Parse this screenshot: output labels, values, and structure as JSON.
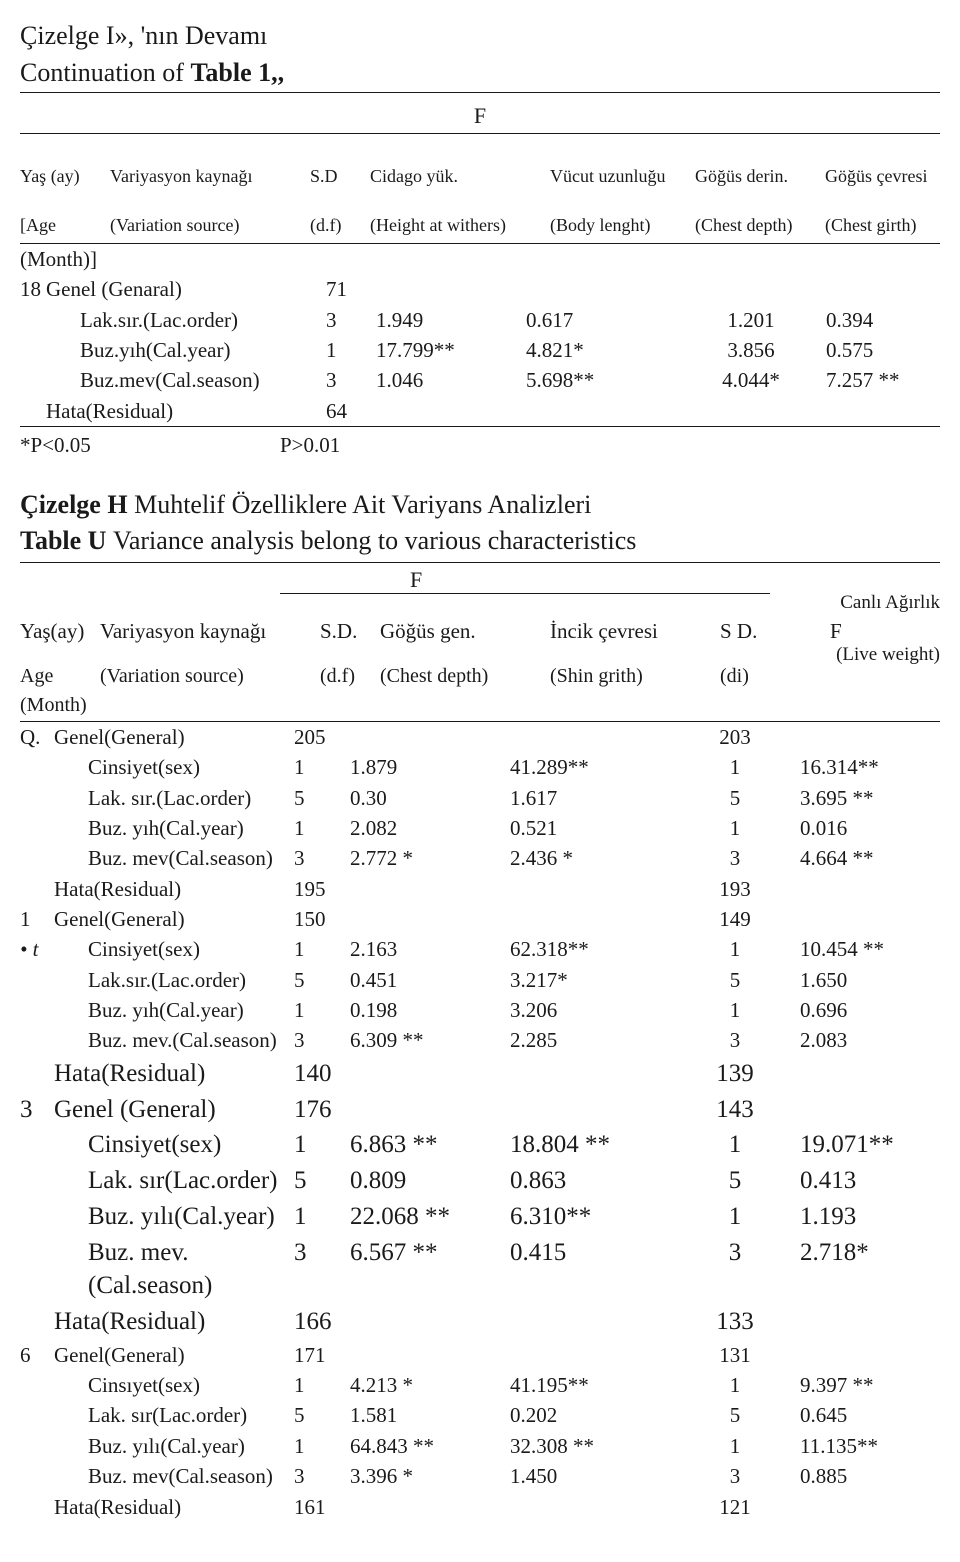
{
  "top": {
    "title_a": "Çizelge I», 'nın Devamı",
    "title_b_prefix": "Continuation of ",
    "title_b_bold": "Table 1,,",
    "F": "F",
    "hdr": {
      "age_tr": "Yaş (ay)",
      "age_en": "[Age",
      "src_tr": "Variyasyon kaynağı",
      "src_en": "(Variation source)",
      "sd_tr": "S.D",
      "sd_en": "(d.f)",
      "c1_tr": "Cidago yük.",
      "c1_en": "(Height at withers)",
      "c2_tr": "Vücut uzunluğu",
      "c2_en": "(Body lenght)",
      "c3_tr": "Göğüs derin.",
      "c3_en": "(Chest depth)",
      "c4_tr": "Göğüs çevresi",
      "c4_en": "(Chest girth)"
    },
    "month": "(Month)]",
    "rows": [
      {
        "age": "18",
        "src": "Genel (Genaral)",
        "df": "71",
        "a": "",
        "b": "",
        "c": "",
        "d": ""
      },
      {
        "age": "",
        "src": "Lak.sır.(Lac.order)",
        "df": "3",
        "a": "1.949",
        "b": "0.617",
        "c": "1.201",
        "d": "0.394"
      },
      {
        "age": "",
        "src": "Buz.yıh(Cal.year)",
        "df": "1",
        "a": "17.799**",
        "b": "4.821*",
        "c": "3.856",
        "d": "0.575"
      },
      {
        "age": "",
        "src": "Buz.mev(Cal.season)",
        "df": "3",
        "a": "1.046",
        "b": "5.698**",
        "c": "4.044*",
        "d": "7.257 **"
      },
      {
        "age": "",
        "src": "Hata(Residual)",
        "df": "64",
        "a": "",
        "b": "",
        "c": "",
        "d": ""
      }
    ],
    "note_p1": "*P<0.05",
    "note_p2": "P>0.01"
  },
  "bottom": {
    "title_a_prefix": "Çizelge H ",
    "title_a_rest": "Muhtelif Özelliklere Ait Variyans Analizleri",
    "title_b_prefix": "Table U ",
    "title_b_rest": "Variance analysis belong to various characteristics",
    "F": "F",
    "cw_tr": "Canlı Ağırlık",
    "cw_en": "(Live weight)",
    "hdr": {
      "age_tr": "Yaş(ay)",
      "src_tr": "Variyasyon kaynağı",
      "sd_tr": "S.D.",
      "c1_tr": "Göğüs gen.",
      "c2_tr": "İncik çevresi",
      "c3_tr": "S D.",
      "c4_tr": "F",
      "age_en": "Age",
      "src_en": "(Variation source)",
      "sd_en": "(d.f)",
      "c1_en": "(Chest depth)",
      "c2_en": "(Shin grith)",
      "c3_en": "(di)"
    },
    "month": "(Month)",
    "rows": [
      {
        "age": "Q.",
        "src": "Genel(General)",
        "df": "205",
        "a": "",
        "b": "",
        "c": "203",
        "d": "",
        "cls": ""
      },
      {
        "age": "",
        "src": "Cinsiyet(sex)",
        "df": "1",
        "a": "1.879",
        "b": "41.289**",
        "c": "1",
        "d": "16.314**",
        "cls": "indent1"
      },
      {
        "age": "",
        "src": "Lak. sır.(Lac.order)",
        "df": "5",
        "a": "0.30",
        "b": "1.617",
        "c": "5",
        "d": "3.695 **",
        "cls": "indent1"
      },
      {
        "age": "",
        "src": "Buz. yıh(Cal.year)",
        "df": "1",
        "a": "2.082",
        "b": "0.521",
        "c": "1",
        "d": "0.016",
        "cls": "indent1"
      },
      {
        "age": "",
        "src": "Buz. mev(Cal.season)",
        "df": "3",
        "a": "2.772 *",
        "b": "2.436 *",
        "c": "3",
        "d": "4.664 **",
        "cls": "indent1"
      },
      {
        "age": "",
        "src": "Hata(Residual)",
        "df": "195",
        "a": "",
        "b": "",
        "c": "193",
        "d": "",
        "cls": ""
      },
      {
        "age": "1",
        "src": "Genel(General)",
        "df": "150",
        "a": "",
        "b": "",
        "c": "149",
        "d": "",
        "cls": ""
      },
      {
        "age": "• t",
        "src": "Cinsiyet(sex)",
        "df": "1",
        "a": "2.163",
        "b": "62.318**",
        "c": "1",
        "d": "10.454 **",
        "cls": "indent1",
        "ital": true
      },
      {
        "age": "",
        "src": "Lak.sır.(Lac.order)",
        "df": "5",
        "a": "0.451",
        "b": "3.217*",
        "c": "5",
        "d": "1.650",
        "cls": "indent1"
      },
      {
        "age": "",
        "src": "Buz. yıh(Cal.year)",
        "df": "1",
        "a": "0.198",
        "b": "3.206",
        "c": "1",
        "d": "0.696",
        "cls": "indent1"
      },
      {
        "age": "",
        "src": "Buz. mev.(Cal.season)",
        "df": "3",
        "a": "6.309 **",
        "b": "2.285",
        "c": "3",
        "d": "2.083",
        "cls": "indent1"
      },
      {
        "age": "",
        "src": "Hata(Residual)",
        "df": "140",
        "a": "",
        "b": "",
        "c": "139",
        "d": "",
        "cls": "",
        "big": true
      },
      {
        "age": "3",
        "src": "Genel (General)",
        "df": "176",
        "a": "",
        "b": "",
        "c": "143",
        "d": "",
        "cls": "",
        "big": true
      },
      {
        "age": "",
        "src": "Cinsiyet(sex)",
        "df": "1",
        "a": "6.863 **",
        "b": "18.804 **",
        "c": "1",
        "d": "19.071**",
        "cls": "indent1",
        "big": true
      },
      {
        "age": "",
        "src": "Lak. sır(Lac.order)",
        "df": "5",
        "a": "0.809",
        "b": "0.863",
        "c": "5",
        "d": "0.413",
        "cls": "indent1",
        "big": true
      },
      {
        "age": "",
        "src": "Buz. yılı(Cal.year)",
        "df": "1",
        "a": "22.068 **",
        "b": "6.310**",
        "c": "1",
        "d": "1.193",
        "cls": "indent1",
        "big": true
      },
      {
        "age": "",
        "src": "Buz. mev.(Cal.season)",
        "df": "3",
        "a": "6.567 **",
        "b": "0.415",
        "c": "3",
        "d": "2.718*",
        "cls": "indent1",
        "big": true
      },
      {
        "age": "",
        "src": "Hata(Residual)",
        "df": "166",
        "a": "",
        "b": "",
        "c": "133",
        "d": "",
        "cls": "",
        "big": true
      },
      {
        "age": "6",
        "src": "Genel(General)",
        "df": "171",
        "a": "",
        "b": "",
        "c": "131",
        "d": "",
        "cls": ""
      },
      {
        "age": "",
        "src": "Cinsıyet(sex)",
        "df": "1",
        "a": "4.213 *",
        "b": "41.195**",
        "c": "1",
        "d": "9.397 **",
        "cls": "indent1"
      },
      {
        "age": "",
        "src": "Lak. sır(Lac.order)",
        "df": "5",
        "a": "1.581",
        "b": "0.202",
        "c": "5",
        "d": "0.645",
        "cls": "indent1"
      },
      {
        "age": "",
        "src": "Buz. yılı(Cal.year)",
        "df": "1",
        "a": "64.843 **",
        "b": "32.308 **",
        "c": "1",
        "d": "11.135**",
        "cls": "indent1"
      },
      {
        "age": "",
        "src": "Buz. mev(Cal.season)",
        "df": "3",
        "a": "3.396 *",
        "b": "1.450",
        "c": "3",
        "d": "0.885",
        "cls": "indent1"
      },
      {
        "age": "",
        "src": "Hata(Residual)",
        "df": "161",
        "a": "",
        "b": "",
        "c": "121",
        "d": "",
        "cls": ""
      }
    ]
  }
}
